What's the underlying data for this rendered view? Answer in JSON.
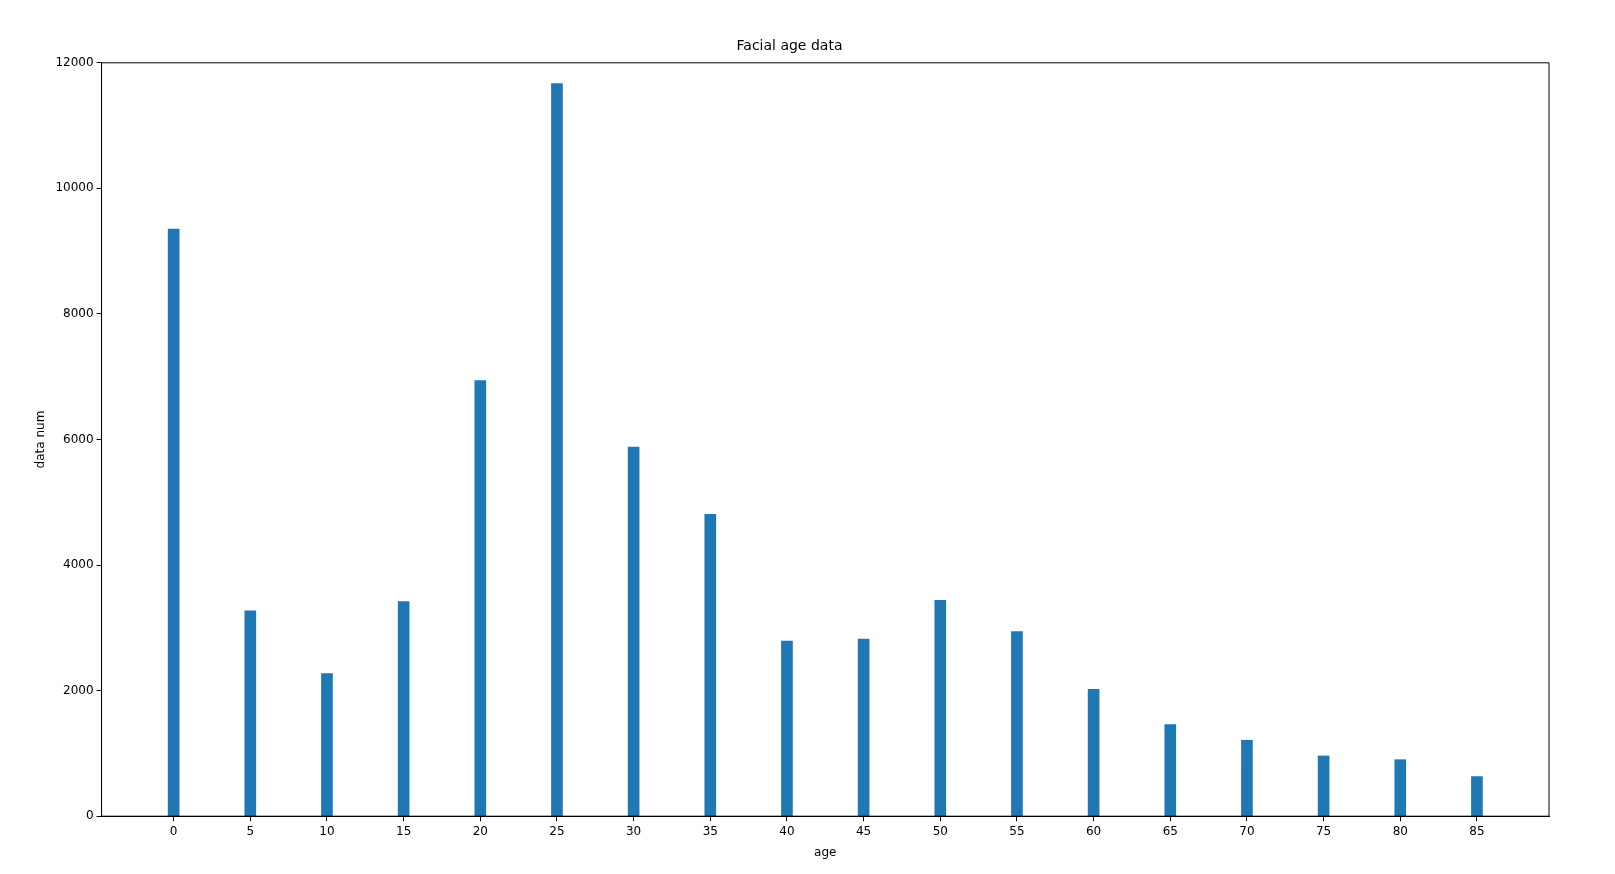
{
  "chart_data": {
    "type": "bar",
    "title": "Facial age data",
    "xlabel": "age",
    "ylabel": "data num",
    "x": [
      0,
      5,
      10,
      15,
      20,
      25,
      30,
      35,
      40,
      45,
      50,
      55,
      60,
      65,
      70,
      75,
      80,
      85
    ],
    "values": [
      9350,
      3270,
      2270,
      3420,
      6940,
      11670,
      5880,
      4810,
      2790,
      2820,
      3440,
      2940,
      2020,
      1460,
      1210,
      960,
      900,
      630
    ],
    "color": "#1f77b4",
    "xlim": [
      -4.7,
      89.7
    ],
    "xticks": [
      0,
      5,
      10,
      15,
      20,
      25,
      30,
      35,
      40,
      45,
      50,
      55,
      60,
      65,
      70,
      75,
      80,
      85
    ],
    "ylim": [
      0,
      12000
    ],
    "yticks": [
      0,
      2000,
      4000,
      6000,
      8000,
      10000,
      12000
    ],
    "grid": false,
    "legend": false
  }
}
